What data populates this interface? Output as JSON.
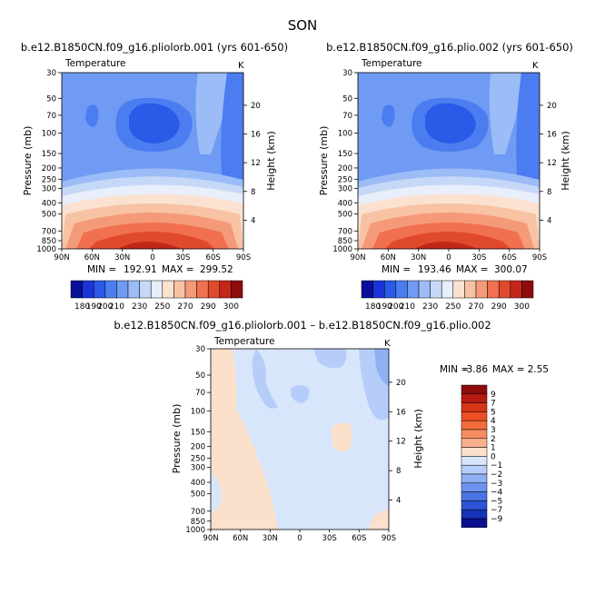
{
  "figure_title": "SON",
  "chart_data": [
    {
      "id": "panel1",
      "type": "contour",
      "title": "b.e12.B1850CN.f09_g16.pliolorb.001 (yrs 601-650)",
      "subtitle_left": "Temperature",
      "subtitle_right": "K",
      "xlabel": "",
      "ylabel": "Pressure (mb)",
      "ylabel_right": "Height (km)",
      "x_ticks": [
        "90N",
        "60N",
        "30N",
        "0",
        "30S",
        "60S",
        "90S"
      ],
      "y_ticks": [
        "30",
        "50",
        "70",
        "100",
        "150",
        "200",
        "250",
        "300",
        "400",
        "500",
        "700",
        "850",
        "1000"
      ],
      "y_ticks_right": [
        "4",
        "8",
        "12",
        "16",
        "20"
      ],
      "ylim": [
        1000,
        30
      ],
      "stats": {
        "min_label": "MIN =",
        "min": "192.91",
        "max_label": "MAX =",
        "max": "299.52"
      },
      "contour_levels": [
        180,
        190,
        200,
        210,
        220,
        230,
        240,
        250,
        260,
        270,
        280,
        290,
        300
      ],
      "colorbar_labels": [
        "180",
        "190",
        "200",
        "210",
        "230",
        "250",
        "270",
        "290",
        "300"
      ]
    },
    {
      "id": "panel2",
      "type": "contour",
      "title": "b.e12.B1850CN.f09_g16.plio.002 (yrs 601-650)",
      "subtitle_left": "Temperature",
      "subtitle_right": "K",
      "xlabel": "",
      "ylabel": "Pressure (mb)",
      "ylabel_right": "Height (km)",
      "x_ticks": [
        "90N",
        "60N",
        "30N",
        "0",
        "30S",
        "60S",
        "90S"
      ],
      "y_ticks": [
        "30",
        "50",
        "70",
        "100",
        "150",
        "200",
        "250",
        "300",
        "400",
        "500",
        "700",
        "850",
        "1000"
      ],
      "y_ticks_right": [
        "4",
        "8",
        "12",
        "16",
        "20"
      ],
      "ylim": [
        1000,
        30
      ],
      "stats": {
        "min_label": "MIN =",
        "min": "193.46",
        "max_label": "MAX =",
        "max": "300.07"
      },
      "contour_levels": [
        180,
        190,
        200,
        210,
        220,
        230,
        240,
        250,
        260,
        270,
        280,
        290,
        300
      ],
      "colorbar_labels": [
        "180",
        "190",
        "200",
        "210",
        "230",
        "250",
        "270",
        "290",
        "300"
      ]
    },
    {
      "id": "panel3",
      "type": "contour",
      "title": "b.e12.B1850CN.f09_g16.pliolorb.001 – b.e12.B1850CN.f09_g16.plio.002",
      "subtitle_left": "Temperature",
      "subtitle_right": "K",
      "xlabel": "",
      "ylabel": "Pressure (mb)",
      "ylabel_right": "Height (km)",
      "x_ticks": [
        "90N",
        "60N",
        "30N",
        "0",
        "30S",
        "60S",
        "90S"
      ],
      "y_ticks": [
        "30",
        "50",
        "70",
        "100",
        "150",
        "200",
        "250",
        "300",
        "400",
        "500",
        "700",
        "850",
        "1000"
      ],
      "y_ticks_right": [
        "4",
        "8",
        "12",
        "16",
        "20"
      ],
      "ylim": [
        1000,
        30
      ],
      "stats": {
        "min_label": "MIN =",
        "min": "-3.86",
        "max_label": "MAX =",
        "max": "2.55"
      },
      "contour_levels": [
        -9,
        -7,
        -5,
        -4,
        -3,
        -2,
        -1,
        0,
        1,
        2,
        3,
        4,
        5,
        7,
        9
      ],
      "colorbar_labels": [
        "9",
        "7",
        "5",
        "4",
        "3",
        "2",
        "1",
        "0",
        "−1",
        "−2",
        "−3",
        "−4",
        "−5",
        "−7",
        "−9"
      ]
    }
  ],
  "colors": {
    "abs_scale": [
      "#08109a",
      "#1a34d8",
      "#2a5ae8",
      "#4b7cf0",
      "#6f9bf4",
      "#9bbcf6",
      "#c6d8f8",
      "#e8eefa",
      "#fbe2d0",
      "#f8c2a4",
      "#f59a78",
      "#f0704f",
      "#e04a2c",
      "#c4261a",
      "#8e0c0c"
    ],
    "diff_scale": [
      "#8e0c0c",
      "#b71a12",
      "#d83418",
      "#ec5026",
      "#f46c3c",
      "#f78c62",
      "#f9b08e",
      "#fbe0cc",
      "#d8e6fb",
      "#b5cdf8",
      "#8fb1f4",
      "#6b93ef",
      "#4a73e5",
      "#2d53d6",
      "#1533b8",
      "#08108e"
    ]
  }
}
